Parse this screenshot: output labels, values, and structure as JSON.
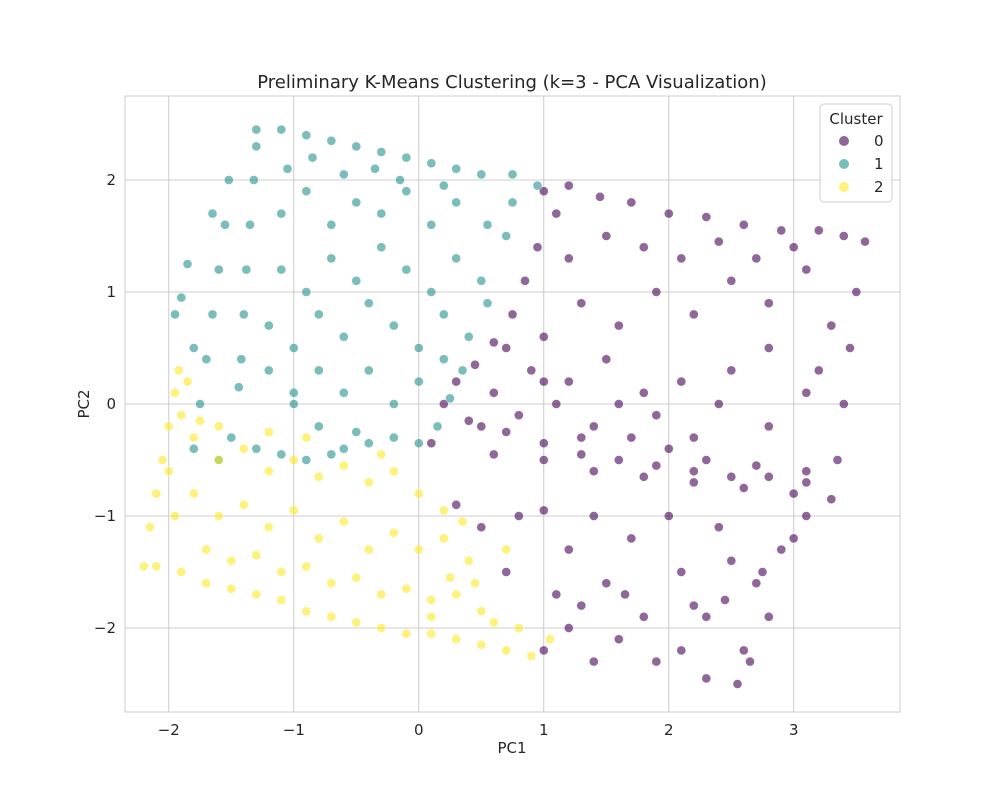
{
  "chart_data": {
    "type": "scatter",
    "title": "Preliminary K-Means Clustering (k=3 - PCA Visualization)",
    "xlabel": "PC1",
    "ylabel": "PC2",
    "xlim": [
      -2.35,
      3.85
    ],
    "ylim": [
      -2.75,
      2.75
    ],
    "xticks": [
      -2,
      -1,
      0,
      1,
      2,
      3
    ],
    "yticks": [
      -2,
      -1,
      0,
      1,
      2
    ],
    "xtick_labels": [
      "−2",
      "−1",
      "0",
      "1",
      "2",
      "3"
    ],
    "ytick_labels": [
      "−2",
      "−1",
      "0",
      "1",
      "2"
    ],
    "grid": true,
    "legend": {
      "title": "Cluster",
      "placement": "top-right",
      "entries": [
        "0",
        "1",
        "2"
      ]
    },
    "marker_alpha": 0.6,
    "series": [
      {
        "name": "0",
        "color": "#440154",
        "points": [
          [
            1.0,
            1.9
          ],
          [
            1.2,
            1.95
          ],
          [
            1.45,
            1.85
          ],
          [
            1.7,
            1.8
          ],
          [
            2.0,
            1.7
          ],
          [
            2.3,
            1.67
          ],
          [
            2.6,
            1.6
          ],
          [
            2.9,
            1.55
          ],
          [
            3.2,
            1.55
          ],
          [
            3.4,
            1.5
          ],
          [
            3.57,
            1.45
          ],
          [
            3.5,
            1.0
          ],
          [
            3.45,
            0.5
          ],
          [
            3.4,
            0.0
          ],
          [
            3.35,
            -0.5
          ],
          [
            3.3,
            -0.85
          ],
          [
            3.0,
            -0.8
          ],
          [
            2.6,
            -0.75
          ],
          [
            2.2,
            -0.7
          ],
          [
            1.8,
            -0.65
          ],
          [
            1.4,
            -0.6
          ],
          [
            1.0,
            -0.5
          ],
          [
            0.6,
            -0.45
          ],
          [
            0.1,
            -0.35
          ],
          [
            0.2,
            0.0
          ],
          [
            0.3,
            0.2
          ],
          [
            0.45,
            0.35
          ],
          [
            0.6,
            0.55
          ],
          [
            0.75,
            0.8
          ],
          [
            0.85,
            1.1
          ],
          [
            0.95,
            1.4
          ],
          [
            1.1,
            1.7
          ],
          [
            0.5,
            -0.2
          ],
          [
            0.8,
            -0.1
          ],
          [
            1.1,
            0.0
          ],
          [
            1.4,
            -0.2
          ],
          [
            1.7,
            -0.3
          ],
          [
            2.0,
            -0.4
          ],
          [
            2.3,
            -0.5
          ],
          [
            2.7,
            -0.55
          ],
          [
            3.1,
            -0.6
          ],
          [
            0.6,
            0.1
          ],
          [
            0.9,
            0.3
          ],
          [
            1.2,
            0.2
          ],
          [
            1.5,
            0.4
          ],
          [
            1.8,
            0.1
          ],
          [
            2.1,
            0.2
          ],
          [
            2.4,
            0.0
          ],
          [
            2.8,
            -0.2
          ],
          [
            3.1,
            0.1
          ],
          [
            1.0,
            0.6
          ],
          [
            1.3,
            0.9
          ],
          [
            1.6,
            0.7
          ],
          [
            1.9,
            1.0
          ],
          [
            2.2,
            0.8
          ],
          [
            2.5,
            1.1
          ],
          [
            2.8,
            0.9
          ],
          [
            3.1,
            1.2
          ],
          [
            3.3,
            0.7
          ],
          [
            1.2,
            1.3
          ],
          [
            1.5,
            1.5
          ],
          [
            1.8,
            1.4
          ],
          [
            2.1,
            1.3
          ],
          [
            2.4,
            1.45
          ],
          [
            2.7,
            1.3
          ],
          [
            3.0,
            1.4
          ],
          [
            0.7,
            0.5
          ],
          [
            1.0,
            0.2
          ],
          [
            1.3,
            -0.3
          ],
          [
            1.6,
            0.0
          ],
          [
            1.9,
            -0.1
          ],
          [
            2.2,
            -0.3
          ],
          [
            2.5,
            0.3
          ],
          [
            2.8,
            0.5
          ],
          [
            3.2,
            0.3
          ],
          [
            0.4,
            -0.15
          ],
          [
            0.7,
            -0.25
          ],
          [
            1.0,
            -0.35
          ],
          [
            1.3,
            -0.45
          ],
          [
            1.6,
            -0.5
          ],
          [
            1.9,
            -0.55
          ],
          [
            2.2,
            -0.6
          ],
          [
            2.5,
            -0.65
          ],
          [
            2.8,
            -0.65
          ],
          [
            3.1,
            -0.7
          ],
          [
            0.3,
            -0.9
          ],
          [
            0.5,
            -1.1
          ],
          [
            0.7,
            -1.5
          ],
          [
            0.8,
            -1.0
          ],
          [
            1.0,
            -0.95
          ],
          [
            1.2,
            -1.3
          ],
          [
            1.4,
            -1.0
          ],
          [
            1.5,
            -1.6
          ],
          [
            1.7,
            -1.2
          ],
          [
            1.8,
            -1.9
          ],
          [
            2.0,
            -1.0
          ],
          [
            2.1,
            -1.5
          ],
          [
            2.3,
            -1.9
          ],
          [
            2.4,
            -1.1
          ],
          [
            2.5,
            -1.4
          ],
          [
            2.6,
            -2.2
          ],
          [
            2.7,
            -1.6
          ],
          [
            2.9,
            -1.3
          ],
          [
            3.0,
            -1.2
          ],
          [
            3.1,
            -1.0
          ],
          [
            1.2,
            -2.0
          ],
          [
            1.4,
            -2.3
          ],
          [
            1.6,
            -2.1
          ],
          [
            1.9,
            -2.3
          ],
          [
            2.1,
            -2.2
          ],
          [
            2.3,
            -2.45
          ],
          [
            2.55,
            -2.5
          ],
          [
            2.65,
            -2.3
          ],
          [
            1.0,
            -2.2
          ],
          [
            2.8,
            -1.9
          ],
          [
            1.1,
            -1.7
          ],
          [
            1.3,
            -1.8
          ],
          [
            1.65,
            -1.7
          ],
          [
            2.2,
            -1.8
          ],
          [
            2.45,
            -1.75
          ],
          [
            2.75,
            -1.5
          ]
        ]
      },
      {
        "name": "1",
        "color": "#21918c",
        "points": [
          [
            -1.3,
            2.45
          ],
          [
            -1.1,
            2.45
          ],
          [
            -0.9,
            2.4
          ],
          [
            -0.7,
            2.35
          ],
          [
            -0.5,
            2.3
          ],
          [
            -0.3,
            2.25
          ],
          [
            -0.1,
            2.2
          ],
          [
            0.1,
            2.15
          ],
          [
            0.3,
            2.1
          ],
          [
            0.5,
            2.05
          ],
          [
            0.75,
            2.05
          ],
          [
            0.95,
            1.95
          ],
          [
            -1.3,
            2.3
          ],
          [
            -1.32,
            2.0
          ],
          [
            -1.35,
            1.6
          ],
          [
            -1.38,
            1.2
          ],
          [
            -1.4,
            0.8
          ],
          [
            -1.42,
            0.4
          ],
          [
            -1.44,
            0.15
          ],
          [
            -1.52,
            2.0
          ],
          [
            -1.55,
            1.6
          ],
          [
            -1.6,
            1.2
          ],
          [
            -1.65,
            0.8
          ],
          [
            -1.7,
            0.4
          ],
          [
            -1.75,
            0.0
          ],
          [
            -1.8,
            -0.4
          ],
          [
            -1.9,
            0.95
          ],
          [
            -1.95,
            0.8
          ],
          [
            -1.85,
            1.25
          ],
          [
            -1.65,
            1.7
          ],
          [
            -1.8,
            0.5
          ],
          [
            -1.2,
            0.3
          ],
          [
            -1.0,
            0.1
          ],
          [
            -0.8,
            -0.2
          ],
          [
            -0.6,
            -0.4
          ],
          [
            -0.4,
            -0.35
          ],
          [
            -0.2,
            -0.3
          ],
          [
            0.0,
            -0.35
          ],
          [
            0.15,
            -0.2
          ],
          [
            0.25,
            0.05
          ],
          [
            0.35,
            0.3
          ],
          [
            -1.2,
            0.7
          ],
          [
            -1.0,
            0.5
          ],
          [
            -0.8,
            0.8
          ],
          [
            -0.6,
            0.6
          ],
          [
            -0.4,
            0.9
          ],
          [
            -0.2,
            0.7
          ],
          [
            0.0,
            0.5
          ],
          [
            0.2,
            0.8
          ],
          [
            0.4,
            0.6
          ],
          [
            0.55,
            0.9
          ],
          [
            -1.1,
            1.2
          ],
          [
            -0.9,
            1.0
          ],
          [
            -0.7,
            1.3
          ],
          [
            -0.5,
            1.1
          ],
          [
            -0.3,
            1.4
          ],
          [
            -0.1,
            1.2
          ],
          [
            0.1,
            1.0
          ],
          [
            0.3,
            1.3
          ],
          [
            0.5,
            1.1
          ],
          [
            0.7,
            1.5
          ],
          [
            -1.1,
            1.7
          ],
          [
            -0.9,
            1.9
          ],
          [
            -0.7,
            1.6
          ],
          [
            -0.5,
            1.8
          ],
          [
            -0.3,
            1.7
          ],
          [
            -0.1,
            1.9
          ],
          [
            0.1,
            1.6
          ],
          [
            0.3,
            1.8
          ],
          [
            0.55,
            1.6
          ],
          [
            0.75,
            1.8
          ],
          [
            -1.05,
            2.1
          ],
          [
            -0.85,
            2.2
          ],
          [
            -0.6,
            2.05
          ],
          [
            -0.35,
            2.1
          ],
          [
            -0.15,
            2.0
          ],
          [
            0.2,
            1.95
          ],
          [
            -1.0,
            0.0
          ],
          [
            -0.8,
            0.3
          ],
          [
            -0.6,
            0.1
          ],
          [
            -0.4,
            0.3
          ],
          [
            -0.2,
            0.0
          ],
          [
            0.0,
            0.2
          ],
          [
            0.2,
            0.4
          ],
          [
            -1.3,
            -0.4
          ],
          [
            -1.1,
            -0.45
          ],
          [
            -0.9,
            -0.5
          ],
          [
            -1.5,
            -0.3
          ],
          [
            -1.6,
            -0.5
          ],
          [
            -0.7,
            -0.45
          ],
          [
            -0.5,
            -0.25
          ]
        ]
      },
      {
        "name": "2",
        "color": "#fde725",
        "points": [
          [
            -2.2,
            -1.45
          ],
          [
            -2.15,
            -1.1
          ],
          [
            -2.1,
            -0.8
          ],
          [
            -2.05,
            -0.5
          ],
          [
            -2.0,
            -0.2
          ],
          [
            -1.95,
            0.1
          ],
          [
            -1.92,
            0.3
          ],
          [
            -2.1,
            -1.45
          ],
          [
            -1.9,
            -1.5
          ],
          [
            -1.7,
            -1.6
          ],
          [
            -1.5,
            -1.65
          ],
          [
            -1.3,
            -1.7
          ],
          [
            -1.1,
            -1.75
          ],
          [
            -0.9,
            -1.85
          ],
          [
            -0.7,
            -1.9
          ],
          [
            -0.5,
            -1.95
          ],
          [
            -0.3,
            -2.0
          ],
          [
            -0.1,
            -2.05
          ],
          [
            0.1,
            -2.05
          ],
          [
            0.3,
            -2.1
          ],
          [
            0.5,
            -2.15
          ],
          [
            0.7,
            -2.2
          ],
          [
            0.9,
            -2.25
          ],
          [
            -1.8,
            -0.3
          ],
          [
            -1.6,
            -0.5
          ],
          [
            -1.4,
            -0.4
          ],
          [
            -1.2,
            -0.6
          ],
          [
            -1.0,
            -0.5
          ],
          [
            -0.8,
            -0.65
          ],
          [
            -0.6,
            -0.55
          ],
          [
            -0.4,
            -0.7
          ],
          [
            -0.2,
            -0.6
          ],
          [
            0.0,
            -0.8
          ],
          [
            -1.8,
            -0.8
          ],
          [
            -1.6,
            -1.0
          ],
          [
            -1.4,
            -0.9
          ],
          [
            -1.2,
            -1.1
          ],
          [
            -1.0,
            -0.95
          ],
          [
            -0.8,
            -1.2
          ],
          [
            -0.6,
            -1.05
          ],
          [
            -0.4,
            -1.3
          ],
          [
            -0.2,
            -1.15
          ],
          [
            0.0,
            -1.3
          ],
          [
            0.2,
            -1.2
          ],
          [
            0.4,
            -1.4
          ],
          [
            -1.7,
            -1.3
          ],
          [
            -1.5,
            -1.4
          ],
          [
            -1.3,
            -1.35
          ],
          [
            -1.1,
            -1.5
          ],
          [
            -0.9,
            -1.45
          ],
          [
            -0.7,
            -1.6
          ],
          [
            -0.5,
            -1.55
          ],
          [
            -0.3,
            -1.7
          ],
          [
            -0.1,
            -1.65
          ],
          [
            0.1,
            -1.75
          ],
          [
            0.3,
            -1.7
          ],
          [
            0.5,
            -1.85
          ],
          [
            -1.85,
            0.2
          ],
          [
            -1.9,
            -0.1
          ],
          [
            -1.75,
            -0.15
          ],
          [
            -2.0,
            -0.6
          ],
          [
            -1.95,
            -1.0
          ],
          [
            0.1,
            -1.9
          ],
          [
            0.25,
            -1.55
          ],
          [
            0.45,
            -1.6
          ],
          [
            0.6,
            -1.95
          ],
          [
            0.7,
            -1.3
          ],
          [
            0.8,
            -2.0
          ],
          [
            1.05,
            -2.1
          ],
          [
            -0.9,
            -0.3
          ],
          [
            -1.2,
            -0.25
          ],
          [
            -1.6,
            -0.2
          ],
          [
            -0.3,
            -0.45
          ],
          [
            0.2,
            -0.95
          ],
          [
            0.35,
            -1.05
          ]
        ]
      }
    ]
  }
}
